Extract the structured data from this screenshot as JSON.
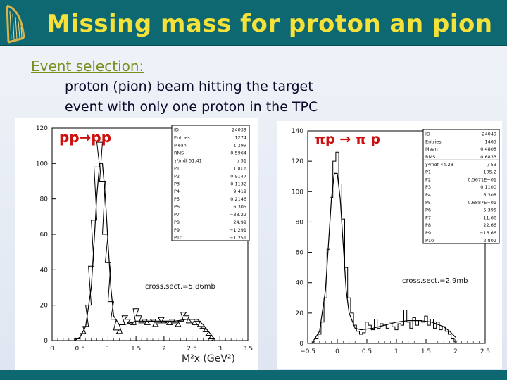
{
  "slide": {
    "title": "Missing mass for proton an pion",
    "selection_heading": "Event selection:",
    "lines": [
      "proton (pion) beam hitting the target",
      "event with only one proton in the TPC"
    ]
  },
  "colors": {
    "title_bar": "#0d6872",
    "title_text": "#f4e23a",
    "heading_text": "#7a8f1f",
    "reaction_label": "#cc1010"
  },
  "chart_data": [
    {
      "type": "line",
      "reaction": "pp→pp",
      "annotation": "cross.sect.=5.86mb",
      "xlabel": "M²x (GeV²)",
      "xlim": [
        0,
        3.5
      ],
      "ylim": [
        0,
        120
      ],
      "xticks": [
        0,
        0.5,
        1,
        1.5,
        2,
        2.5,
        3,
        3.5
      ],
      "xtick_labels": [
        "0",
        "0.5",
        "1",
        "1.5",
        "2",
        "2.5",
        "3",
        "3.5"
      ],
      "yticks": [
        0,
        20,
        40,
        60,
        80,
        100,
        120
      ],
      "stats": [
        [
          "ID",
          "24039"
        ],
        [
          "Entries",
          "1274"
        ],
        [
          "Mean",
          "1.299"
        ],
        [
          "RMS",
          "0.5964"
        ],
        [
          "χ²/ndf  51.41",
          "/  51"
        ],
        [
          "P1",
          "100.6"
        ],
        [
          "P2",
          "0.9147"
        ],
        [
          "P3",
          "0.1132"
        ],
        [
          "P4",
          "9.419"
        ],
        [
          "P5",
          "0.2146"
        ],
        [
          "P6",
          "6.305"
        ],
        [
          "P7",
          "−33.22"
        ],
        [
          "P8",
          "24.99"
        ],
        [
          "P9",
          "−1.291"
        ],
        [
          "P10",
          "−1.251"
        ]
      ],
      "series": [
        {
          "kind": "histogram",
          "x": [
            0.35,
            0.45,
            0.55,
            0.6,
            0.65,
            0.7,
            0.75,
            0.8,
            0.85,
            0.9,
            0.95,
            1.0,
            1.05,
            1.1,
            1.15,
            1.2,
            1.25,
            1.3,
            1.35,
            1.4,
            1.45,
            1.5,
            1.55,
            1.6,
            1.65,
            1.7,
            1.75,
            1.8,
            1.85,
            1.9,
            1.95,
            2.0,
            2.05,
            2.1,
            2.15,
            2.2,
            2.25,
            2.3,
            2.35,
            2.4,
            2.45,
            2.5,
            2.55,
            2.6,
            2.65,
            2.7,
            2.75,
            2.8,
            2.85,
            2.9
          ],
          "y": [
            0,
            1,
            4,
            8,
            20,
            42,
            68,
            98,
            112,
            90,
            60,
            44,
            22,
            12,
            6,
            4,
            9,
            14,
            12,
            10,
            9,
            18,
            14,
            10,
            12,
            9,
            11,
            12,
            8,
            10,
            13,
            10,
            11,
            9,
            12,
            10,
            8,
            11,
            16,
            14,
            10,
            12,
            9,
            11,
            8,
            7,
            5,
            3,
            1,
            0
          ]
        },
        {
          "kind": "fit",
          "x": [
            0.4,
            0.5,
            0.6,
            0.7,
            0.75,
            0.8,
            0.85,
            0.9,
            0.95,
            1.0,
            1.05,
            1.1,
            1.2,
            1.3,
            1.4,
            1.5,
            1.6,
            1.8,
            2.0,
            2.2,
            2.4,
            2.6,
            2.7,
            2.8,
            2.9
          ],
          "y": [
            0,
            2,
            8,
            30,
            55,
            82,
            100,
            100,
            82,
            55,
            30,
            14,
            9,
            9,
            10,
            11,
            11,
            11,
            11,
            11,
            12,
            12,
            9,
            5,
            1
          ]
        }
      ]
    },
    {
      "type": "line",
      "reaction": "πp → π p",
      "annotation": "cross.sect.=2.9mb",
      "xlim": [
        -0.5,
        2.5
      ],
      "ylim": [
        0,
        140
      ],
      "xticks": [
        -0.5,
        0,
        0.5,
        1,
        1.5,
        2,
        2.5
      ],
      "xtick_labels": [
        "−0.5",
        "0",
        "0.5",
        "1",
        "1.5",
        "2",
        "2.5"
      ],
      "yticks": [
        0,
        20,
        40,
        60,
        80,
        100,
        120,
        140
      ],
      "stats": [
        [
          "ID",
          "24049"
        ],
        [
          "Entries",
          "1465"
        ],
        [
          "Mean",
          "0.4808"
        ],
        [
          "RMS",
          "0.6833"
        ],
        [
          "χ²/ndf  44.28",
          "/  53"
        ],
        [
          "P1",
          "105.2"
        ],
        [
          "P2",
          "0.5671E−01"
        ],
        [
          "P3",
          "0.1100"
        ],
        [
          "P4",
          "6.308"
        ],
        [
          "P5",
          "0.6887E−01"
        ],
        [
          "P6",
          "−5.395"
        ],
        [
          "P7",
          "11.66"
        ],
        [
          "P8",
          "22.66"
        ],
        [
          "P9",
          "−16.66"
        ],
        [
          "P10",
          "2.802"
        ]
      ],
      "series": [
        {
          "kind": "histogram",
          "x": [
            -0.4,
            -0.35,
            -0.3,
            -0.25,
            -0.2,
            -0.15,
            -0.1,
            -0.05,
            0.0,
            0.05,
            0.1,
            0.15,
            0.2,
            0.25,
            0.3,
            0.35,
            0.4,
            0.45,
            0.5,
            0.55,
            0.6,
            0.65,
            0.7,
            0.75,
            0.8,
            0.85,
            0.9,
            0.95,
            1.0,
            1.05,
            1.1,
            1.15,
            1.2,
            1.25,
            1.3,
            1.35,
            1.4,
            1.45,
            1.5,
            1.55,
            1.6,
            1.65,
            1.7,
            1.75,
            1.8,
            1.85,
            1.9,
            1.95,
            2.0
          ],
          "y": [
            1,
            3,
            6,
            14,
            30,
            62,
            96,
            120,
            126,
            105,
            82,
            50,
            30,
            20,
            12,
            8,
            6,
            7,
            14,
            12,
            9,
            16,
            10,
            13,
            12,
            10,
            14,
            11,
            9,
            13,
            12,
            22,
            14,
            10,
            17,
            12,
            15,
            14,
            18,
            12,
            16,
            10,
            14,
            9,
            11,
            8,
            6,
            3,
            1
          ]
        },
        {
          "kind": "fit",
          "x": [
            -0.4,
            -0.3,
            -0.2,
            -0.15,
            -0.1,
            -0.05,
            0.0,
            0.05,
            0.1,
            0.15,
            0.2,
            0.3,
            0.4,
            0.6,
            0.8,
            1.0,
            1.2,
            1.4,
            1.6,
            1.8,
            1.9,
            2.0
          ],
          "y": [
            2,
            8,
            35,
            65,
            95,
            112,
            112,
            95,
            65,
            35,
            20,
            10,
            9,
            10,
            12,
            14,
            15,
            15,
            14,
            11,
            8,
            4
          ]
        }
      ]
    }
  ]
}
